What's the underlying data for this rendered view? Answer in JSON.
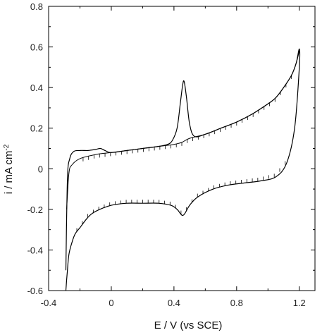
{
  "chart_data": {
    "type": "line",
    "title": "",
    "xlabel": "E / V (vs SCE)",
    "ylabel": "i / mA cm",
    "ylabel_superscript": "-2",
    "xlim": [
      -0.4,
      1.3
    ],
    "ylim": [
      -0.6,
      0.8
    ],
    "xticks": [
      -0.4,
      0,
      0.4,
      0.8,
      1.2
    ],
    "xtick_labels": [
      "-0.4",
      "0",
      "0.4",
      "0.8",
      "1.2"
    ],
    "yticks": [
      -0.6,
      -0.4,
      -0.2,
      0,
      0.2,
      0.4,
      0.6,
      0.8
    ],
    "ytick_labels": [
      "-0.6",
      "-0.4",
      "-0.2",
      "0",
      "0.2",
      "0.4",
      "0.6",
      "0.8"
    ],
    "grid": false,
    "legend": "none",
    "series": [
      {
        "style": "solid",
        "x": [
          -0.29,
          -0.28,
          -0.265,
          -0.24,
          -0.2,
          -0.15,
          -0.1,
          -0.07,
          -0.04,
          0.0,
          0.1,
          0.2,
          0.3,
          0.36,
          0.39,
          0.42,
          0.44,
          0.455,
          0.465,
          0.48,
          0.5,
          0.53,
          0.6,
          0.7,
          0.8,
          0.9,
          1.0,
          1.05,
          1.1,
          1.15,
          1.18,
          1.2,
          1.2,
          1.17,
          1.12,
          1.05,
          0.95,
          0.85,
          0.75,
          0.65,
          0.55,
          0.5,
          0.47,
          0.455,
          0.44,
          0.42,
          0.38,
          0.3,
          0.2,
          0.1,
          0.0,
          -0.1,
          -0.15,
          -0.2,
          -0.23,
          -0.25,
          -0.27,
          -0.28,
          -0.29
        ],
        "y": [
          -0.5,
          -0.05,
          0.05,
          0.085,
          0.09,
          0.09,
          0.095,
          0.1,
          0.09,
          0.08,
          0.09,
          0.1,
          0.11,
          0.12,
          0.14,
          0.2,
          0.32,
          0.41,
          0.43,
          0.35,
          0.22,
          0.16,
          0.17,
          0.2,
          0.23,
          0.27,
          0.32,
          0.35,
          0.4,
          0.46,
          0.52,
          0.59,
          0.5,
          0.2,
          0.03,
          -0.04,
          -0.06,
          -0.07,
          -0.08,
          -0.1,
          -0.14,
          -0.18,
          -0.22,
          -0.23,
          -0.22,
          -0.2,
          -0.18,
          -0.17,
          -0.17,
          -0.17,
          -0.18,
          -0.21,
          -0.24,
          -0.29,
          -0.32,
          -0.36,
          -0.42,
          -0.5,
          -0.6
        ]
      },
      {
        "style": "dashed",
        "x": [
          -0.285,
          -0.27,
          -0.25,
          -0.2,
          -0.1,
          0.0,
          0.1,
          0.2,
          0.3,
          0.4,
          0.45,
          0.5,
          0.6,
          0.7,
          0.8,
          0.9,
          1.0,
          1.05,
          1.1,
          1.15,
          1.18,
          1.2
        ],
        "y": [
          -0.2,
          -0.02,
          0.02,
          0.05,
          0.07,
          0.08,
          0.09,
          0.1,
          0.11,
          0.12,
          0.13,
          0.15,
          0.17,
          0.2,
          0.23,
          0.27,
          0.32,
          0.35,
          0.4,
          0.46,
          0.52,
          0.58
        ]
      }
    ]
  }
}
